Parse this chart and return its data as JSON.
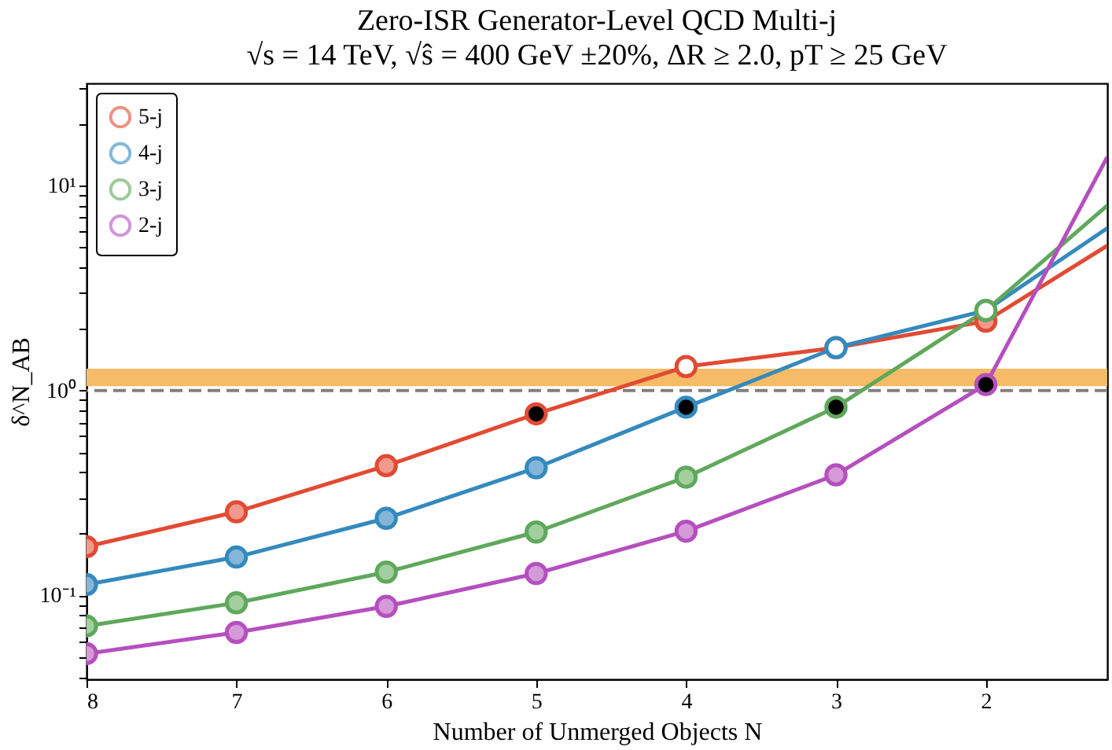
{
  "chart_data": {
    "type": "line",
    "title": "Zero-ISR Generator-Level QCD Multi-j",
    "subtitle": "√s = 14 TeV, √ŝ = 400 GeV ±20%, ΔR ≥ 2.0, pT ≥ 25 GeV",
    "xlabel": "Number of Unmerged Objects N",
    "ylabel": "δ^N_AB",
    "x": [
      8,
      7,
      6,
      5,
      4,
      3,
      2,
      1.19
    ],
    "series": [
      {
        "name": "5-j",
        "color": "#e24a33",
        "values": [
          0.173,
          0.256,
          0.43,
          0.77,
          1.31,
          1.62,
          2.18,
          5.1
        ],
        "colors": [
          "#f0998c",
          "#f0998c",
          "#f0998c",
          "#000000",
          "#ffffff",
          "#f0998c",
          "#f0998c",
          null
        ]
      },
      {
        "name": "4-j",
        "color": "#348abd",
        "values": [
          0.113,
          0.154,
          0.238,
          0.42,
          0.83,
          1.62,
          2.46,
          6.2
        ],
        "colors": [
          "#85b6da",
          "#85b6da",
          "#85b6da",
          "#85b6da",
          "#000000",
          "#ffffff",
          "#85b6da",
          null
        ]
      },
      {
        "name": "3-j",
        "color": "#5fa85c",
        "values": [
          0.071,
          0.092,
          0.13,
          0.204,
          0.378,
          0.83,
          2.46,
          8.0
        ],
        "colors": [
          "#a3cf9f",
          "#a3cf9f",
          "#a3cf9f",
          "#a3cf9f",
          "#a3cf9f",
          "#000000",
          "#ffffff",
          null
        ]
      },
      {
        "name": "2-j",
        "color": "#b54fbf",
        "values": [
          0.052,
          0.066,
          0.0885,
          0.128,
          0.206,
          0.388,
          1.07,
          13.8
        ],
        "colors": [
          "#d59ad8",
          "#d59ad8",
          "#d59ad8",
          "#d59ad8",
          "#d59ad8",
          "#d59ad8",
          "#000000",
          null
        ]
      }
    ],
    "xlim": [
      8,
      1.19
    ],
    "xticks": [
      8,
      7,
      6,
      5,
      4,
      3,
      2
    ],
    "ylim": [
      0.039,
      31.6
    ],
    "log": true,
    "yticks": [
      {
        "value": 0.04,
        "label": null
      },
      {
        "value": 0.05,
        "label": null
      },
      {
        "value": 0.06,
        "label": null
      },
      {
        "value": 0.07,
        "label": null
      },
      {
        "value": 0.08,
        "label": null
      },
      {
        "value": 0.09,
        "label": null
      },
      {
        "value": 0.1,
        "label": "10⁻¹"
      },
      {
        "value": 0.2,
        "label": null
      },
      {
        "value": 0.3,
        "label": null
      },
      {
        "value": 0.4,
        "label": null
      },
      {
        "value": 0.5,
        "label": null
      },
      {
        "value": 0.6,
        "label": null
      },
      {
        "value": 0.7,
        "label": null
      },
      {
        "value": 0.8,
        "label": null
      },
      {
        "value": 0.9,
        "label": null
      },
      {
        "value": 1,
        "label": "10⁰"
      },
      {
        "value": 2,
        "label": null
      },
      {
        "value": 3,
        "label": null
      },
      {
        "value": 4,
        "label": null
      },
      {
        "value": 5,
        "label": null
      },
      {
        "value": 6,
        "label": null
      },
      {
        "value": 7,
        "label": null
      },
      {
        "value": 8,
        "label": null
      },
      {
        "value": 9,
        "label": null
      },
      {
        "value": 10,
        "label": "10¹"
      },
      {
        "value": 20,
        "label": null
      },
      {
        "value": 30,
        "label": null
      }
    ],
    "ref_lines": [
      {
        "axis": "y",
        "value": 1,
        "color": "#808080",
        "line_style": "dashed"
      }
    ],
    "bands": [
      {
        "axis": "y",
        "from": 1.05,
        "to": 1.28,
        "color": "#f6bb66"
      }
    ],
    "legend": "top left",
    "marker": "circle",
    "line_style": "solid",
    "grid": false
  }
}
